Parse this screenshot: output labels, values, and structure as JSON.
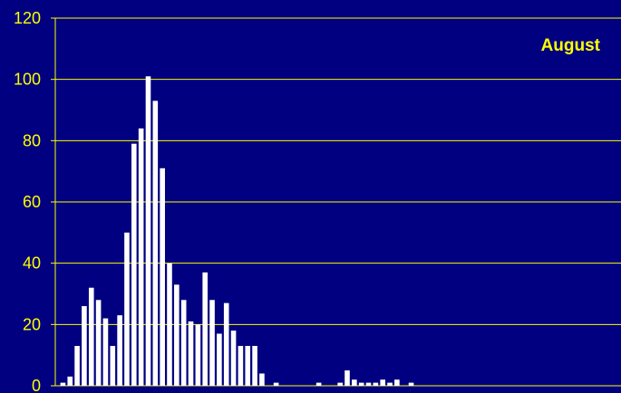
{
  "chart_data": {
    "type": "bar",
    "title": "August",
    "xlabel": "",
    "ylabel": "",
    "ylim": [
      0,
      120
    ],
    "y_ticks": [
      "0",
      "20",
      "40",
      "60",
      "80",
      "100",
      "120"
    ],
    "grid": true,
    "values": [
      1,
      3,
      13,
      26,
      32,
      28,
      22,
      13,
      23,
      50,
      79,
      84,
      101,
      93,
      71,
      40,
      33,
      28,
      21,
      20,
      37,
      28,
      17,
      27,
      18,
      13,
      13,
      13,
      4,
      0,
      1,
      0,
      0,
      0,
      0,
      0,
      1,
      0,
      0,
      1,
      5,
      2,
      1,
      1,
      1,
      2,
      1,
      2,
      0,
      1
    ],
    "colors": {
      "background": "#000080",
      "bars": "#FFFFFF",
      "grid": "#FFFF00",
      "text": "#FFFF00"
    }
  }
}
